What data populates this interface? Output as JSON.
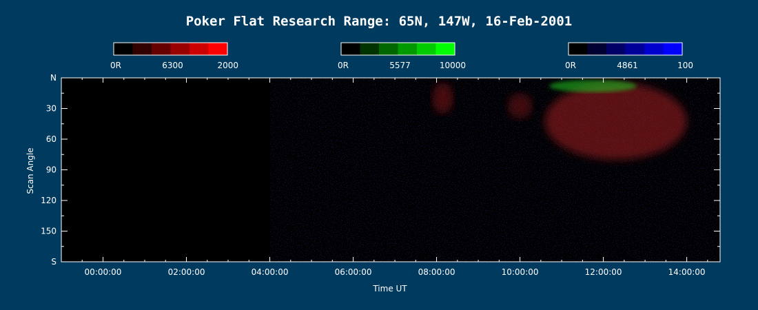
{
  "chart_data": {
    "type": "heatmap",
    "title": "Poker Flat Research Range: 65N, 147W, 16-Feb-2001",
    "xlabel": "Time UT",
    "ylabel": "Scan Angle",
    "x_ticks": [
      "00:00:00",
      "02:00:00",
      "04:00:00",
      "06:00:00",
      "08:00:00",
      "10:00:00",
      "12:00:00",
      "14:00:00"
    ],
    "x_tick_hours": [
      0,
      2,
      4,
      6,
      8,
      10,
      12,
      14
    ],
    "xlim_hours": [
      -1.0,
      14.8
    ],
    "y_ticks": [
      "N",
      "30",
      "60",
      "90",
      "120",
      "150",
      "S"
    ],
    "y_tick_values": [
      0,
      30,
      60,
      90,
      120,
      150,
      180
    ],
    "ylim": [
      0,
      180
    ],
    "data_start_hour": 4.0,
    "colorbars": [
      {
        "name": "6300",
        "min_label": "0R",
        "max_label": "2000",
        "channel": "red",
        "colors": [
          "#000000",
          "#330000",
          "#660000",
          "#990000",
          "#cc0000",
          "#ff0000"
        ]
      },
      {
        "name": "5577",
        "min_label": "0R",
        "max_label": "10000",
        "channel": "green",
        "colors": [
          "#000000",
          "#003300",
          "#006600",
          "#009900",
          "#00cc00",
          "#00ff00"
        ]
      },
      {
        "name": "4861",
        "min_label": "0R",
        "max_label": "100",
        "channel": "blue",
        "colors": [
          "#000000",
          "#000033",
          "#000066",
          "#000099",
          "#0000cc",
          "#0000ff"
        ]
      }
    ],
    "emission_regions": [
      {
        "hours": [
          7.9,
          8.4
        ],
        "angles": [
          5,
          35
        ],
        "channel": "red",
        "intensity": 0.35
      },
      {
        "hours": [
          9.7,
          10.3
        ],
        "angles": [
          15,
          40
        ],
        "channel": "red",
        "intensity": 0.3
      },
      {
        "hours": [
          10.6,
          14.0
        ],
        "angles": [
          5,
          80
        ],
        "channel": "red",
        "intensity": 0.45
      },
      {
        "hours": [
          10.7,
          12.8
        ],
        "angles": [
          2,
          14
        ],
        "channel": "green",
        "intensity": 0.55
      }
    ]
  }
}
